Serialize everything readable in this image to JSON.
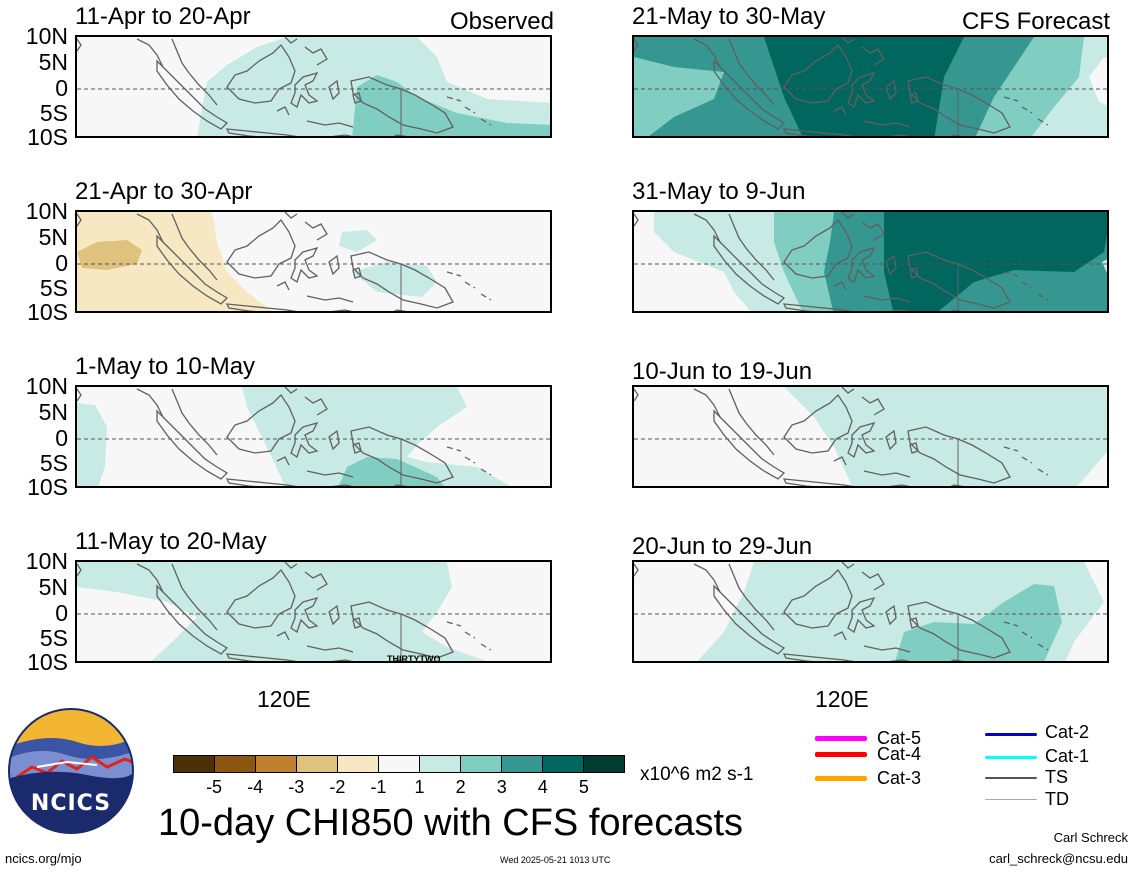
{
  "panels": [
    {
      "title": "11-Apr to 20-Apr",
      "tag": "Observed"
    },
    {
      "title": "21-May to 30-May",
      "tag": "CFS Forecast"
    },
    {
      "title": "21-Apr to 30-Apr",
      "tag": ""
    },
    {
      "title": "31-May to 9-Jun",
      "tag": ""
    },
    {
      "title": "1-May to 10-May",
      "tag": ""
    },
    {
      "title": "10-Jun to 19-Jun",
      "tag": ""
    },
    {
      "title": "11-May to 20-May",
      "tag": ""
    },
    {
      "title": "20-Jun to 29-Jun",
      "tag": ""
    }
  ],
  "lat_labels": [
    "10N",
    "5N",
    "0",
    "5S",
    "10S"
  ],
  "lon_label": "120E",
  "storm_label": "THIRTYTWO",
  "colorbar": {
    "ticks": [
      "-5",
      "-4",
      "-3",
      "-2",
      "-1",
      "1",
      "2",
      "3",
      "4",
      "5"
    ],
    "colors": [
      "#4d3008",
      "#8c5510",
      "#bf812d",
      "#dfc27d",
      "#f6e8c3",
      "#f7f7f7",
      "#c7eae5",
      "#80cdc1",
      "#35978f",
      "#01665e",
      "#003c30"
    ],
    "units": "x10^6 m2 s-1"
  },
  "title": "10-day CHI850 with CFS forecasts",
  "legend": [
    {
      "label": "Cat-5",
      "color": "#ff00ff"
    },
    {
      "label": "Cat-4",
      "color": "#ff0000"
    },
    {
      "label": "Cat-3",
      "color": "#ffa500"
    },
    {
      "label": "Cat-2",
      "color": "#0000cc"
    },
    {
      "label": "Cat-1",
      "color": "#00ffff"
    },
    {
      "label": "TS",
      "color": "#555555"
    },
    {
      "label": "TD",
      "color": "#aaaaaa"
    }
  ],
  "logo_text": "NCICS",
  "footer": {
    "url": "ncics.org/mjo",
    "timestamp": "Wed 2025-05-21 1013 UTC",
    "author": "Carl Schreck",
    "email": "carl_schreck@ncsu.edu"
  }
}
